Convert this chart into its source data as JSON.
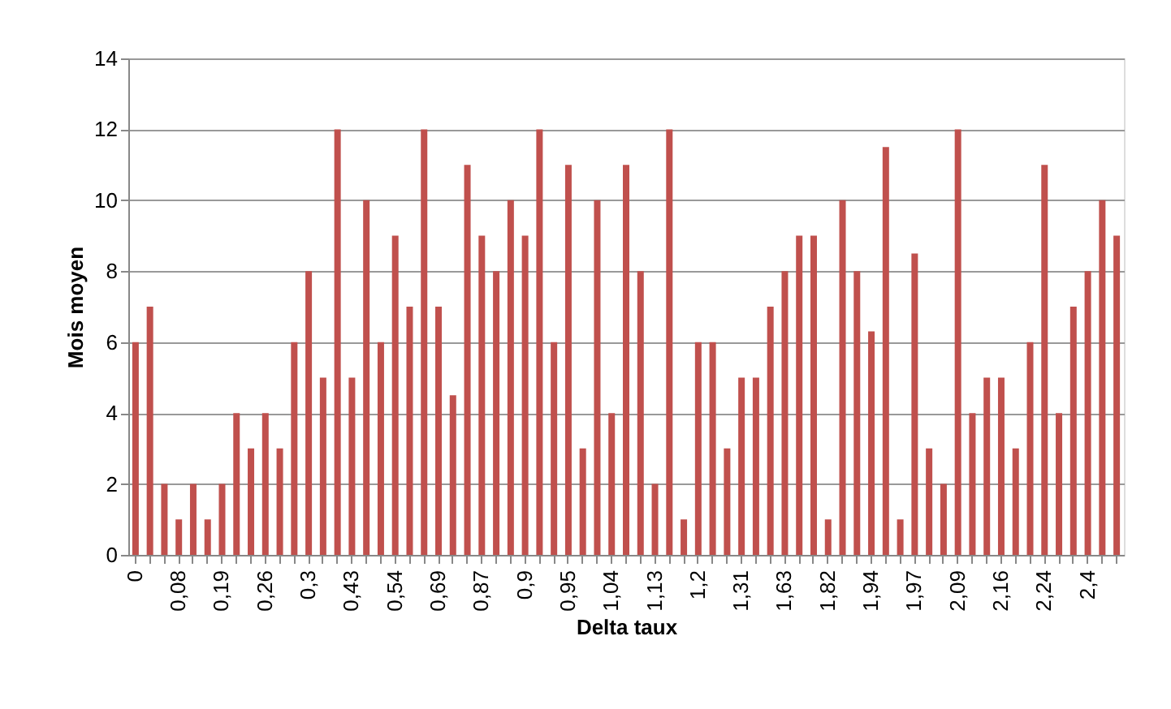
{
  "chart_data": {
    "type": "bar",
    "xlabel": "Delta taux",
    "ylabel": "Mois moyen",
    "categories": [
      "0",
      null,
      null,
      "0,08",
      null,
      null,
      "0,19",
      null,
      null,
      "0,26",
      null,
      null,
      "0,3",
      null,
      null,
      "0,43",
      null,
      null,
      "0,54",
      null,
      null,
      "0,69",
      null,
      null,
      "0,87",
      null,
      null,
      "0,9",
      null,
      null,
      "0,95",
      null,
      null,
      "1,04",
      null,
      null,
      "1,13",
      null,
      null,
      "1,2",
      null,
      null,
      "1,31",
      null,
      null,
      "1,63",
      null,
      null,
      "1,82",
      null,
      null,
      "1,94",
      null,
      null,
      "1,97",
      null,
      null,
      "2,09",
      null,
      null,
      "2,16",
      null,
      null,
      "2,24",
      null,
      null,
      "2,4",
      null,
      null
    ],
    "values": [
      6,
      7,
      2,
      1,
      2,
      1,
      2,
      4,
      3,
      4,
      3,
      6,
      8,
      5,
      12,
      5,
      10,
      6,
      9,
      7,
      12,
      7,
      4.5,
      11,
      9,
      8,
      10,
      9,
      12,
      6,
      11,
      3,
      10,
      4,
      11,
      8,
      2,
      12,
      1,
      6,
      6,
      3,
      5,
      5,
      7,
      8,
      9,
      9,
      1,
      10,
      8,
      6.3,
      11.5,
      1,
      8.5,
      3,
      2,
      12,
      4,
      5,
      5,
      3,
      6,
      11,
      4,
      7,
      8,
      10,
      9
    ],
    "color": "#c0504d",
    "ylim": [
      0,
      14
    ],
    "yticks": [
      0,
      2,
      4,
      6,
      8,
      10,
      12,
      14
    ],
    "grid": "y"
  }
}
